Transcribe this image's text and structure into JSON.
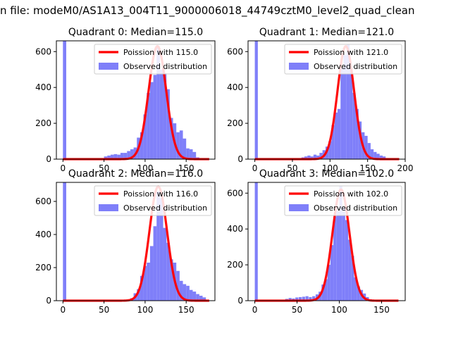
{
  "figure": {
    "suptitle": "n file: modeM0/AS1A13_004T11_9000006018_44749cztM0_level2_quad_clean"
  },
  "colors": {
    "hist": "#7f7ff9",
    "poisson": "#ff0000",
    "axes": "#000000",
    "background": "#ffffff"
  },
  "chart_data": [
    {
      "type": "histogram+line",
      "title": "Quadrant 0: Median=115.0",
      "legend": [
        "Poission with 115.0",
        "Observed distribution"
      ],
      "legend_position": "upper right",
      "xlim": [
        -8,
        185
      ],
      "ylim": [
        0,
        660
      ],
      "xticks": [
        0,
        50,
        100,
        150
      ],
      "yticks": [
        0,
        200,
        400,
        600
      ],
      "bin_width": 4.0,
      "hist_x": [
        0,
        50,
        54,
        58,
        62,
        66,
        70,
        74,
        78,
        82,
        86,
        90,
        94,
        98,
        102,
        106,
        110,
        114,
        118,
        122,
        126,
        130,
        134,
        138,
        142,
        146,
        150,
        154,
        158,
        162
      ],
      "hist_y": [
        660,
        15,
        20,
        25,
        28,
        25,
        35,
        35,
        45,
        55,
        65,
        120,
        150,
        250,
        370,
        430,
        470,
        630,
        500,
        480,
        390,
        230,
        200,
        150,
        160,
        115,
        60,
        55,
        40,
        10
      ],
      "poisson_mean": 115.0,
      "poisson_peak": 630,
      "poisson_x_range": [
        0,
        178
      ]
    },
    {
      "type": "histogram+line",
      "title": "Quadrant 1: Median=121.0",
      "legend": [
        "Poission with 121.0",
        "Observed distribution"
      ],
      "legend_position": "upper right",
      "xlim": [
        -9,
        200
      ],
      "ylim": [
        0,
        660
      ],
      "xticks": [
        0,
        50,
        100,
        150,
        200
      ],
      "yticks": [
        0,
        200,
        400,
        600
      ],
      "bin_width": 4.0,
      "hist_x": [
        0,
        62,
        66,
        70,
        74,
        78,
        82,
        86,
        90,
        94,
        98,
        102,
        106,
        110,
        114,
        118,
        122,
        126,
        130,
        134,
        138,
        142,
        146,
        150,
        154,
        158,
        162,
        166,
        170,
        174
      ],
      "hist_y": [
        660,
        10,
        15,
        20,
        15,
        25,
        20,
        35,
        50,
        70,
        100,
        190,
        260,
        280,
        510,
        580,
        640,
        500,
        370,
        280,
        210,
        150,
        130,
        90,
        55,
        40,
        30,
        20,
        15,
        5
      ],
      "poisson_mean": 121.0,
      "poisson_peak": 630,
      "poisson_x_range": [
        0,
        192
      ]
    },
    {
      "type": "histogram+line",
      "title": "Quadrant 2: Median=116.0",
      "legend": [
        "Poission with 116.0",
        "Observed distribution"
      ],
      "legend_position": "upper right",
      "xlim": [
        -8,
        185
      ],
      "ylim": [
        0,
        715
      ],
      "xticks": [
        0,
        50,
        100,
        150
      ],
      "yticks": [
        0,
        200,
        400,
        600
      ],
      "bin_width": 4.0,
      "hist_x": [
        0,
        82,
        86,
        90,
        94,
        98,
        102,
        106,
        110,
        114,
        118,
        122,
        126,
        130,
        134,
        138,
        142,
        146,
        150,
        154,
        158,
        162,
        166,
        170
      ],
      "hist_y": [
        715,
        15,
        45,
        70,
        150,
        210,
        230,
        330,
        450,
        660,
        620,
        440,
        350,
        250,
        230,
        180,
        120,
        100,
        90,
        65,
        55,
        40,
        30,
        20
      ],
      "poisson_mean": 116.0,
      "poisson_peak": 690,
      "poisson_x_range": [
        0,
        178
      ]
    },
    {
      "type": "histogram+line",
      "title": "Quadrant 3: Median=102.0",
      "legend": [
        "Poission with 102.0",
        "Observed distribution"
      ],
      "legend_position": "upper right",
      "xlim": [
        -8,
        178
      ],
      "ylim": [
        0,
        660
      ],
      "xticks": [
        0,
        50,
        100,
        150
      ],
      "yticks": [
        0,
        200,
        400,
        600
      ],
      "bin_width": 3.5,
      "hist_x": [
        0,
        36,
        40,
        44,
        48,
        52,
        56,
        60,
        64,
        68,
        72,
        75.5,
        79,
        82.5,
        86,
        89.5,
        93,
        96.5,
        100,
        103.5,
        107,
        110.5,
        114,
        117.5,
        121,
        124.5,
        128,
        131.5,
        135
      ],
      "hist_y": [
        660,
        10,
        15,
        12,
        18,
        20,
        22,
        25,
        20,
        25,
        35,
        50,
        90,
        120,
        200,
        310,
        470,
        500,
        640,
        520,
        450,
        340,
        250,
        130,
        80,
        60,
        40,
        20,
        8
      ],
      "poisson_mean": 102.0,
      "poisson_peak": 620,
      "poisson_x_range": [
        0,
        170
      ]
    }
  ]
}
